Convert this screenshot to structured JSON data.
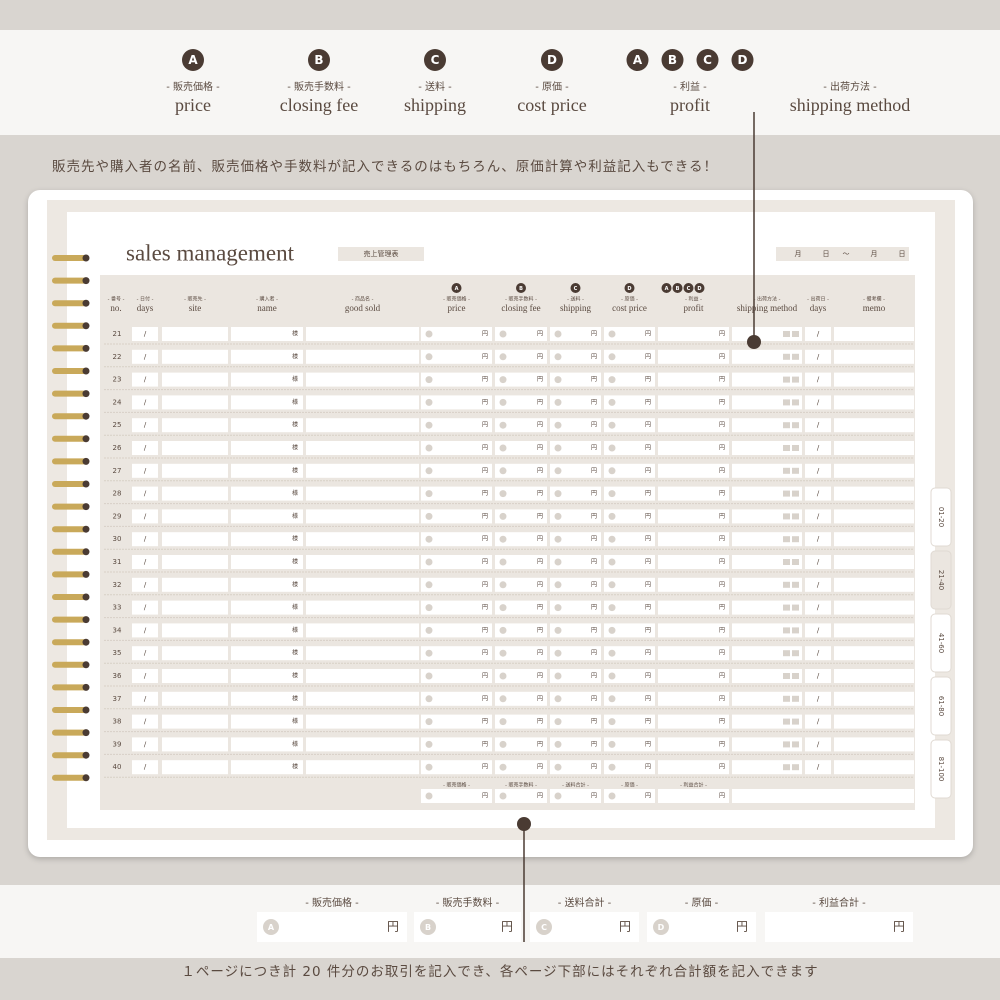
{
  "legend": [
    {
      "badges": [
        "A"
      ],
      "jp": "- 販売価格 -",
      "en": "price"
    },
    {
      "badges": [
        "B"
      ],
      "jp": "- 販売手数料 -",
      "en": "closing fee"
    },
    {
      "badges": [
        "C"
      ],
      "jp": "- 送料 -",
      "en": "shipping"
    },
    {
      "badges": [
        "D"
      ],
      "jp": "- 原価 -",
      "en": "cost price"
    },
    {
      "badges": [
        "A",
        "B",
        "C",
        "D"
      ],
      "jp": "- 利益 -",
      "en": "profit"
    },
    {
      "badges": [],
      "jp": "- 出荷方法 -",
      "en": "shipping method"
    }
  ],
  "caption_top": "販売先や購入者の名前、販売価格や手数料が記入できるのはもちろん、原価計算や利益記入もできる！",
  "planner": {
    "title": "sales management",
    "label": "売上管理表",
    "date": [
      "月",
      "日",
      "～",
      "月",
      "日"
    ],
    "columns": [
      {
        "jp": "- 番号 -",
        "en": "no."
      },
      {
        "jp": "- 日付 -",
        "en": "days"
      },
      {
        "jp": "- 販売先 -",
        "en": "site"
      },
      {
        "jp": "- 購入者 -",
        "en": "name"
      },
      {
        "jp": "- 商品名 -",
        "en": "good sold"
      },
      {
        "jp": "- 販売価格 -",
        "en": "price"
      },
      {
        "jp": "- 販売手数料 -",
        "en": "closing fee"
      },
      {
        "jp": "- 送料 -",
        "en": "shipping"
      },
      {
        "jp": "- 原価 -",
        "en": "cost price"
      },
      {
        "jp": "- 利益 -",
        "en": "profit"
      },
      {
        "jp": "- 出荷方法 -",
        "en": "shipping method"
      },
      {
        "jp": "- 出荷日 -",
        "en": "days"
      },
      {
        "jp": "- 備考欄 -",
        "en": "memo"
      }
    ],
    "rows": [
      "21",
      "22",
      "23",
      "24",
      "25",
      "26",
      "27",
      "28",
      "29",
      "30",
      "31",
      "32",
      "33",
      "34",
      "35",
      "36",
      "37",
      "38",
      "39",
      "40"
    ],
    "marks": {
      "slash": "/",
      "honorific": "様",
      "yen": "円"
    },
    "totals": [
      "- 販売価格 -",
      "- 販売手数料 -",
      "- 送料合計 -",
      "- 原価 -",
      "- 利益合計 -"
    ],
    "tabs": [
      "01-20",
      "21-40",
      "41-60",
      "61-80",
      "81-100"
    ]
  },
  "bottom_totals": [
    {
      "label": "- 販売価格 -",
      "badge": "A"
    },
    {
      "label": "- 販売手数料 -",
      "badge": "B"
    },
    {
      "label": "- 送料合計 -",
      "badge": "C"
    },
    {
      "label": "- 原価 -",
      "badge": "D"
    },
    {
      "label": "- 利益合計 -"
    }
  ],
  "caption_bottom": "１ページにつき計 20 件分のお取引を記入でき、各ページ下部にはそれぞれ合計額を記入できます"
}
